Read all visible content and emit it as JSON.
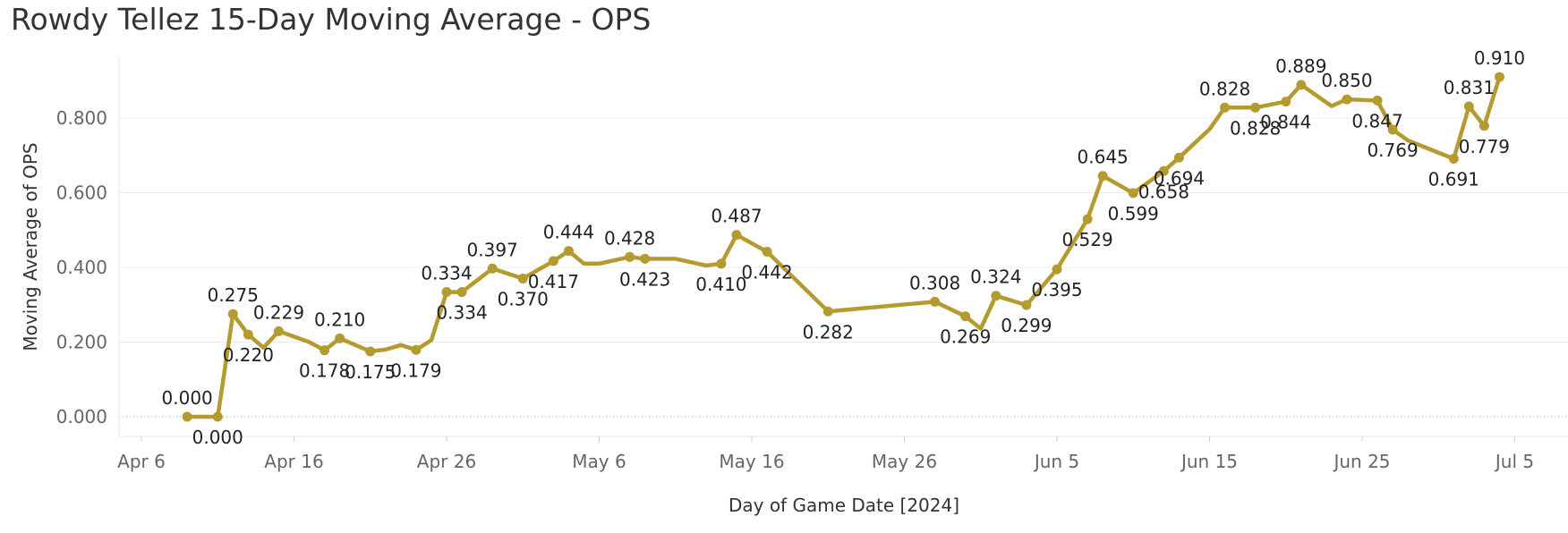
{
  "chart_data": {
    "type": "line",
    "title": "Rowdy Tellez 15-Day Moving Average - OPS",
    "xlabel": "Day of Game Date [2024]",
    "ylabel": "Moving Average of OPS",
    "ylim": [
      -0.05,
      0.95
    ],
    "yticks": [
      0.0,
      0.2,
      0.4,
      0.6,
      0.8
    ],
    "ytick_labels": [
      "0.000",
      "0.200",
      "0.400",
      "0.600",
      "0.800"
    ],
    "x_start_date": "2024-04-04",
    "xlim_days": [
      0,
      96.5
    ],
    "xticks": [
      2,
      12,
      22,
      32,
      42,
      52,
      62,
      72,
      82,
      92
    ],
    "xtick_labels": [
      "Apr 6",
      "Apr 16",
      "Apr 26",
      "May 6",
      "May 16",
      "May 26",
      "Jun 5",
      "Jun 15",
      "Jun 25",
      "Jul 5"
    ],
    "line_color": "#B59A2F",
    "series": [
      {
        "name": "Moving Average of OPS",
        "points": [
          {
            "day": 5.0,
            "value": 0.0,
            "label": "0.000"
          },
          {
            "day": 7.0,
            "value": 0.0,
            "label": "0.000"
          },
          {
            "day": 8.0,
            "value": 0.275,
            "label": "0.275"
          },
          {
            "day": 9.0,
            "value": 0.22,
            "label": "0.220"
          },
          {
            "day": 10.0,
            "value": 0.185
          },
          {
            "day": 11.0,
            "value": 0.229,
            "label": "0.229"
          },
          {
            "day": 13.0,
            "value": 0.2
          },
          {
            "day": 14.0,
            "value": 0.178,
            "label": "0.178"
          },
          {
            "day": 15.0,
            "value": 0.21,
            "label": "0.210"
          },
          {
            "day": 17.0,
            "value": 0.175,
            "label": "0.175"
          },
          {
            "day": 18.0,
            "value": 0.18
          },
          {
            "day": 19.0,
            "value": 0.192
          },
          {
            "day": 20.0,
            "value": 0.179,
            "label": "0.179"
          },
          {
            "day": 21.0,
            "value": 0.205
          },
          {
            "day": 22.0,
            "value": 0.334,
            "label": "0.334"
          },
          {
            "day": 23.0,
            "value": 0.334,
            "label": "0.334"
          },
          {
            "day": 25.0,
            "value": 0.397,
            "label": "0.397"
          },
          {
            "day": 27.0,
            "value": 0.37,
            "label": "0.370"
          },
          {
            "day": 29.0,
            "value": 0.417,
            "label": "0.417"
          },
          {
            "day": 30.0,
            "value": 0.444,
            "label": "0.444"
          },
          {
            "day": 31.0,
            "value": 0.41
          },
          {
            "day": 32.0,
            "value": 0.41
          },
          {
            "day": 34.0,
            "value": 0.428,
            "label": "0.428"
          },
          {
            "day": 35.0,
            "value": 0.423,
            "label": "0.423"
          },
          {
            "day": 37.0,
            "value": 0.423
          },
          {
            "day": 39.0,
            "value": 0.405
          },
          {
            "day": 40.0,
            "value": 0.41,
            "label": "0.410"
          },
          {
            "day": 41.0,
            "value": 0.487,
            "label": "0.487"
          },
          {
            "day": 43.0,
            "value": 0.442,
            "label": "0.442"
          },
          {
            "day": 47.0,
            "value": 0.282,
            "label": "0.282"
          },
          {
            "day": 54.0,
            "value": 0.308,
            "label": "0.308"
          },
          {
            "day": 56.0,
            "value": 0.269,
            "label": "0.269"
          },
          {
            "day": 57.0,
            "value": 0.236
          },
          {
            "day": 58.0,
            "value": 0.324,
            "label": "0.324"
          },
          {
            "day": 60.0,
            "value": 0.299,
            "label": "0.299"
          },
          {
            "day": 62.0,
            "value": 0.395,
            "label": "0.395"
          },
          {
            "day": 64.0,
            "value": 0.529,
            "label": "0.529"
          },
          {
            "day": 65.0,
            "value": 0.645,
            "label": "0.645"
          },
          {
            "day": 67.0,
            "value": 0.599,
            "label": "0.599"
          },
          {
            "day": 69.0,
            "value": 0.658,
            "label": "0.658"
          },
          {
            "day": 70.0,
            "value": 0.694,
            "label": "0.694"
          },
          {
            "day": 72.0,
            "value": 0.77
          },
          {
            "day": 73.0,
            "value": 0.828,
            "label": "0.828"
          },
          {
            "day": 75.0,
            "value": 0.828,
            "label": "0.828"
          },
          {
            "day": 77.0,
            "value": 0.844,
            "label": "0.844"
          },
          {
            "day": 78.0,
            "value": 0.889,
            "label": "0.889"
          },
          {
            "day": 80.0,
            "value": 0.832
          },
          {
            "day": 81.0,
            "value": 0.85,
            "label": "0.850"
          },
          {
            "day": 83.0,
            "value": 0.847,
            "label": "0.847"
          },
          {
            "day": 84.0,
            "value": 0.769,
            "label": "0.769"
          },
          {
            "day": 85.0,
            "value": 0.74
          },
          {
            "day": 88.0,
            "value": 0.691,
            "label": "0.691"
          },
          {
            "day": 89.0,
            "value": 0.831,
            "label": "0.831"
          },
          {
            "day": 90.0,
            "value": 0.779,
            "label": "0.779"
          },
          {
            "day": 91.0,
            "value": 0.91,
            "label": "0.910"
          }
        ]
      }
    ]
  }
}
